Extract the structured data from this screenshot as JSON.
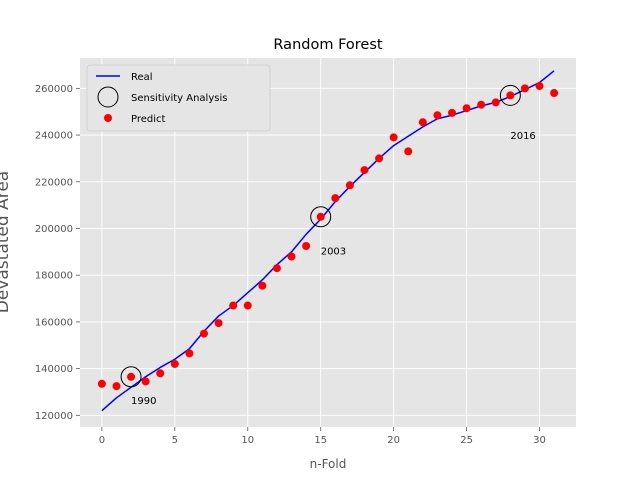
{
  "chart_data": {
    "type": "line",
    "title": "Random Forest",
    "xlabel": "n-Fold",
    "ylabel": "Devastated Area",
    "xlim": [
      -1.5,
      32.5
    ],
    "ylim": [
      115000,
      273000
    ],
    "xticks": [
      0,
      5,
      10,
      15,
      20,
      25,
      30
    ],
    "yticks": [
      120000,
      140000,
      160000,
      180000,
      200000,
      220000,
      240000,
      260000
    ],
    "grid": true,
    "legend_position": "upper-left",
    "colors": {
      "background": "#e5e5e5",
      "grid": "#ffffff",
      "real": "#0000ff",
      "predict": "#ff0000",
      "sensitivity": "#000000"
    },
    "series": [
      {
        "name": "Real",
        "type": "line",
        "x": [
          0,
          1,
          2,
          3,
          4,
          5,
          6,
          7,
          8,
          9,
          10,
          11,
          12,
          13,
          14,
          15,
          16,
          17,
          18,
          19,
          20,
          21,
          22,
          23,
          24,
          25,
          26,
          27,
          28,
          29,
          30,
          31
        ],
        "y": [
          122000,
          127500,
          132000,
          136500,
          140500,
          144000,
          148500,
          156000,
          162500,
          167000,
          172500,
          178000,
          184500,
          190000,
          197500,
          204000,
          211500,
          218000,
          224000,
          230000,
          235500,
          239500,
          243500,
          247000,
          248500,
          250500,
          252500,
          254000,
          256500,
          259500,
          262500,
          267500
        ]
      },
      {
        "name": "Sensitivity Analysis",
        "type": "scatter-ring",
        "x": [
          2,
          15,
          28
        ],
        "y": [
          136500,
          205000,
          257000
        ]
      },
      {
        "name": "Predict",
        "type": "scatter",
        "x": [
          0,
          1,
          2,
          3,
          4,
          5,
          6,
          7,
          8,
          9,
          10,
          11,
          12,
          13,
          14,
          15,
          16,
          17,
          18,
          19,
          20,
          21,
          22,
          23,
          24,
          25,
          26,
          27,
          28,
          29,
          30,
          31
        ],
        "y": [
          133500,
          132500,
          136500,
          134500,
          138000,
          142000,
          146500,
          155000,
          159500,
          167000,
          167000,
          175500,
          183000,
          188000,
          192500,
          205000,
          213000,
          218500,
          225000,
          230000,
          239000,
          233000,
          245500,
          248500,
          249500,
          251500,
          253000,
          254000,
          257000,
          260000,
          261000,
          258000
        ]
      }
    ],
    "annotations": [
      {
        "text": "1990",
        "x": 2,
        "y": 126500
      },
      {
        "text": "2003",
        "x": 15,
        "y": 190500
      },
      {
        "text": "2016",
        "x": 28,
        "y": 240000
      }
    ]
  }
}
